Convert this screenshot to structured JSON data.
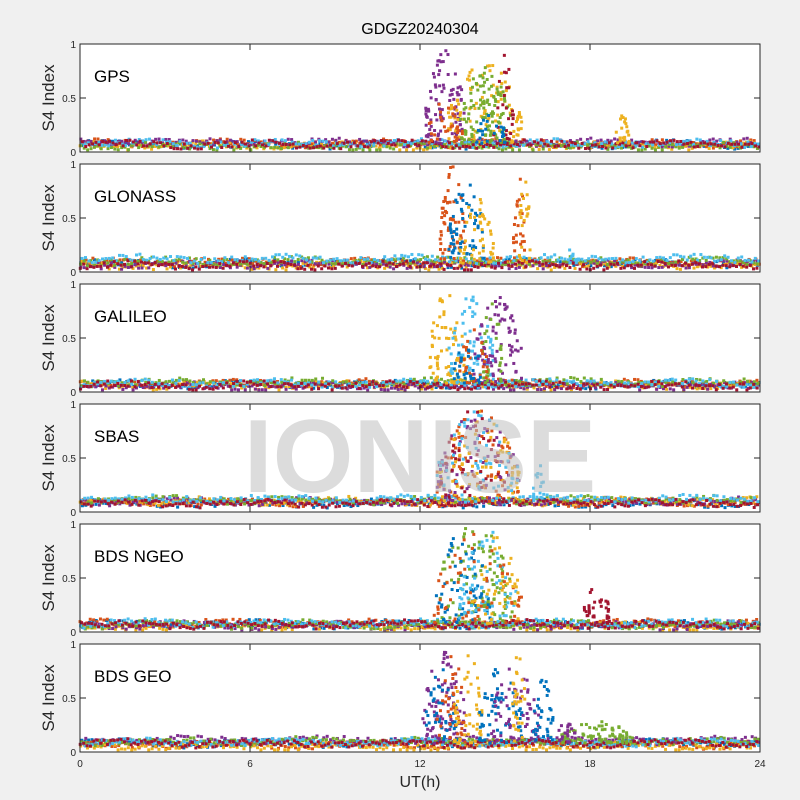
{
  "chart_data": {
    "type": "scatter",
    "title": "GDGZ20240304",
    "xlabel": "UT(h)",
    "ylabel": "S4 Index",
    "xlim": [
      0,
      24
    ],
    "ylim": [
      0,
      1
    ],
    "xticks": [
      "0",
      "6",
      "12",
      "18",
      "24"
    ],
    "yticks": [
      "0",
      "0.5",
      "1"
    ],
    "watermark": "IONISE",
    "colors": [
      "#0072BD",
      "#D95319",
      "#EDB120",
      "#7E2F8E",
      "#77AC30",
      "#4DBEEE",
      "#A2142F"
    ],
    "panels": [
      {
        "label": "GPS",
        "baseline": [
          0.07,
          0.08,
          0.06,
          0.09,
          0.05,
          0.08,
          0.07
        ],
        "bursts": [
          {
            "series": 3,
            "t": [
              12.2,
              13.6
            ],
            "peak": 0.95,
            "n": 90
          },
          {
            "series": 2,
            "t": [
              13.0,
              15.6
            ],
            "peak": 0.85,
            "n": 110
          },
          {
            "series": 4,
            "t": [
              13.4,
              15.2
            ],
            "peak": 0.8,
            "n": 110
          },
          {
            "series": 1,
            "t": [
              12.3,
              13.5
            ],
            "peak": 0.5,
            "n": 30
          },
          {
            "series": 6,
            "t": [
              14.6,
              15.3
            ],
            "peak": 0.95,
            "n": 25
          },
          {
            "series": 0,
            "t": [
              14.0,
              15.0
            ],
            "peak": 0.4,
            "n": 25
          },
          {
            "series": 2,
            "t": [
              18.9,
              19.4
            ],
            "peak": 0.35,
            "n": 20
          }
        ]
      },
      {
        "label": "GLONASS",
        "baseline": [
          0.08,
          0.09,
          0.06,
          0.07,
          0.1,
          0.12,
          0.06
        ],
        "bursts": [
          {
            "series": 1,
            "t": [
              12.7,
              13.6
            ],
            "peak": 1.0,
            "n": 60
          },
          {
            "series": 0,
            "t": [
              13.0,
              14.3
            ],
            "peak": 0.9,
            "n": 60
          },
          {
            "series": 2,
            "t": [
              13.4,
              14.6
            ],
            "peak": 0.7,
            "n": 50
          },
          {
            "series": 1,
            "t": [
              15.3,
              15.7
            ],
            "peak": 0.95,
            "n": 25
          },
          {
            "series": 2,
            "t": [
              15.5,
              15.9
            ],
            "peak": 0.95,
            "n": 25
          },
          {
            "series": 5,
            "t": [
              17.2,
              17.6
            ],
            "peak": 0.25,
            "n": 10
          }
        ]
      },
      {
        "label": "GALILEO",
        "baseline": [
          0.07,
          0.08,
          0.06,
          0.05,
          0.09,
          0.08,
          0.06
        ],
        "bursts": [
          {
            "series": 2,
            "t": [
              12.3,
              13.6
            ],
            "peak": 0.95,
            "n": 70
          },
          {
            "series": 5,
            "t": [
              13.0,
              14.6
            ],
            "peak": 0.95,
            "n": 70
          },
          {
            "series": 3,
            "t": [
              13.9,
              15.6
            ],
            "peak": 0.9,
            "n": 80
          },
          {
            "series": 4,
            "t": [
              14.2,
              14.9
            ],
            "peak": 0.95,
            "n": 30
          },
          {
            "series": 1,
            "t": [
              13.4,
              14.4
            ],
            "peak": 0.6,
            "n": 30
          },
          {
            "series": 0,
            "t": [
              13.2,
              14.2
            ],
            "peak": 0.5,
            "n": 25
          }
        ]
      },
      {
        "label": "SBAS",
        "baseline": [
          0.08,
          0.09,
          0.1,
          0.1,
          0.11,
          0.12,
          0.08
        ],
        "bursts": [
          {
            "series": 1,
            "t": [
              12.6,
              15.5
            ],
            "peak": 0.95,
            "n": 90
          },
          {
            "series": 2,
            "t": [
              12.6,
              15.5
            ],
            "peak": 0.95,
            "n": 70
          },
          {
            "series": 3,
            "t": [
              12.6,
              15.5
            ],
            "peak": 0.95,
            "n": 70
          },
          {
            "series": 5,
            "t": [
              12.6,
              15.5
            ],
            "peak": 0.95,
            "n": 60
          },
          {
            "series": 6,
            "t": [
              12.6,
              15.0
            ],
            "peak": 0.95,
            "n": 40
          },
          {
            "series": 5,
            "t": [
              16.0,
              16.4
            ],
            "peak": 0.5,
            "n": 15
          }
        ]
      },
      {
        "label": "BDS NGEO",
        "baseline": [
          0.07,
          0.08,
          0.05,
          0.06,
          0.07,
          0.08,
          0.07
        ],
        "bursts": [
          {
            "series": 4,
            "t": [
              12.5,
              15.4
            ],
            "peak": 1.0,
            "n": 110
          },
          {
            "series": 0,
            "t": [
              12.5,
              14.5
            ],
            "peak": 0.95,
            "n": 60
          },
          {
            "series": 5,
            "t": [
              13.4,
              15.4
            ],
            "peak": 0.95,
            "n": 70
          },
          {
            "series": 1,
            "t": [
              12.5,
              15.6
            ],
            "peak": 0.95,
            "n": 60
          },
          {
            "series": 2,
            "t": [
              13.8,
              15.6
            ],
            "peak": 0.9,
            "n": 40
          },
          {
            "series": 6,
            "t": [
              17.8,
              18.7
            ],
            "peak": 0.45,
            "n": 35
          }
        ]
      },
      {
        "label": "BDS GEO",
        "baseline": [
          0.08,
          0.07,
          0.05,
          0.11,
          0.1,
          0.09,
          0.08
        ],
        "bursts": [
          {
            "series": 3,
            "t": [
              12.1,
              13.6
            ],
            "peak": 0.95,
            "n": 80
          },
          {
            "series": 0,
            "t": [
              12.2,
              13.3
            ],
            "peak": 0.85,
            "n": 40
          },
          {
            "series": 1,
            "t": [
              12.6,
              13.6
            ],
            "peak": 0.95,
            "n": 35
          },
          {
            "series": 2,
            "t": [
              13.2,
              14.2
            ],
            "peak": 0.95,
            "n": 50
          },
          {
            "series": 0,
            "t": [
              14.1,
              15.6
            ],
            "peak": 0.8,
            "n": 60
          },
          {
            "series": 3,
            "t": [
              14.5,
              16.2
            ],
            "peak": 0.8,
            "n": 60
          },
          {
            "series": 2,
            "t": [
              15.2,
              15.8
            ],
            "peak": 0.95,
            "n": 30
          },
          {
            "series": 0,
            "t": [
              16.0,
              16.7
            ],
            "peak": 0.7,
            "n": 35
          },
          {
            "series": 4,
            "t": [
              17.0,
              19.5
            ],
            "peak": 0.3,
            "n": 70
          },
          {
            "series": 3,
            "t": [
              16.8,
              17.5
            ],
            "peak": 0.3,
            "n": 20
          }
        ]
      }
    ]
  }
}
